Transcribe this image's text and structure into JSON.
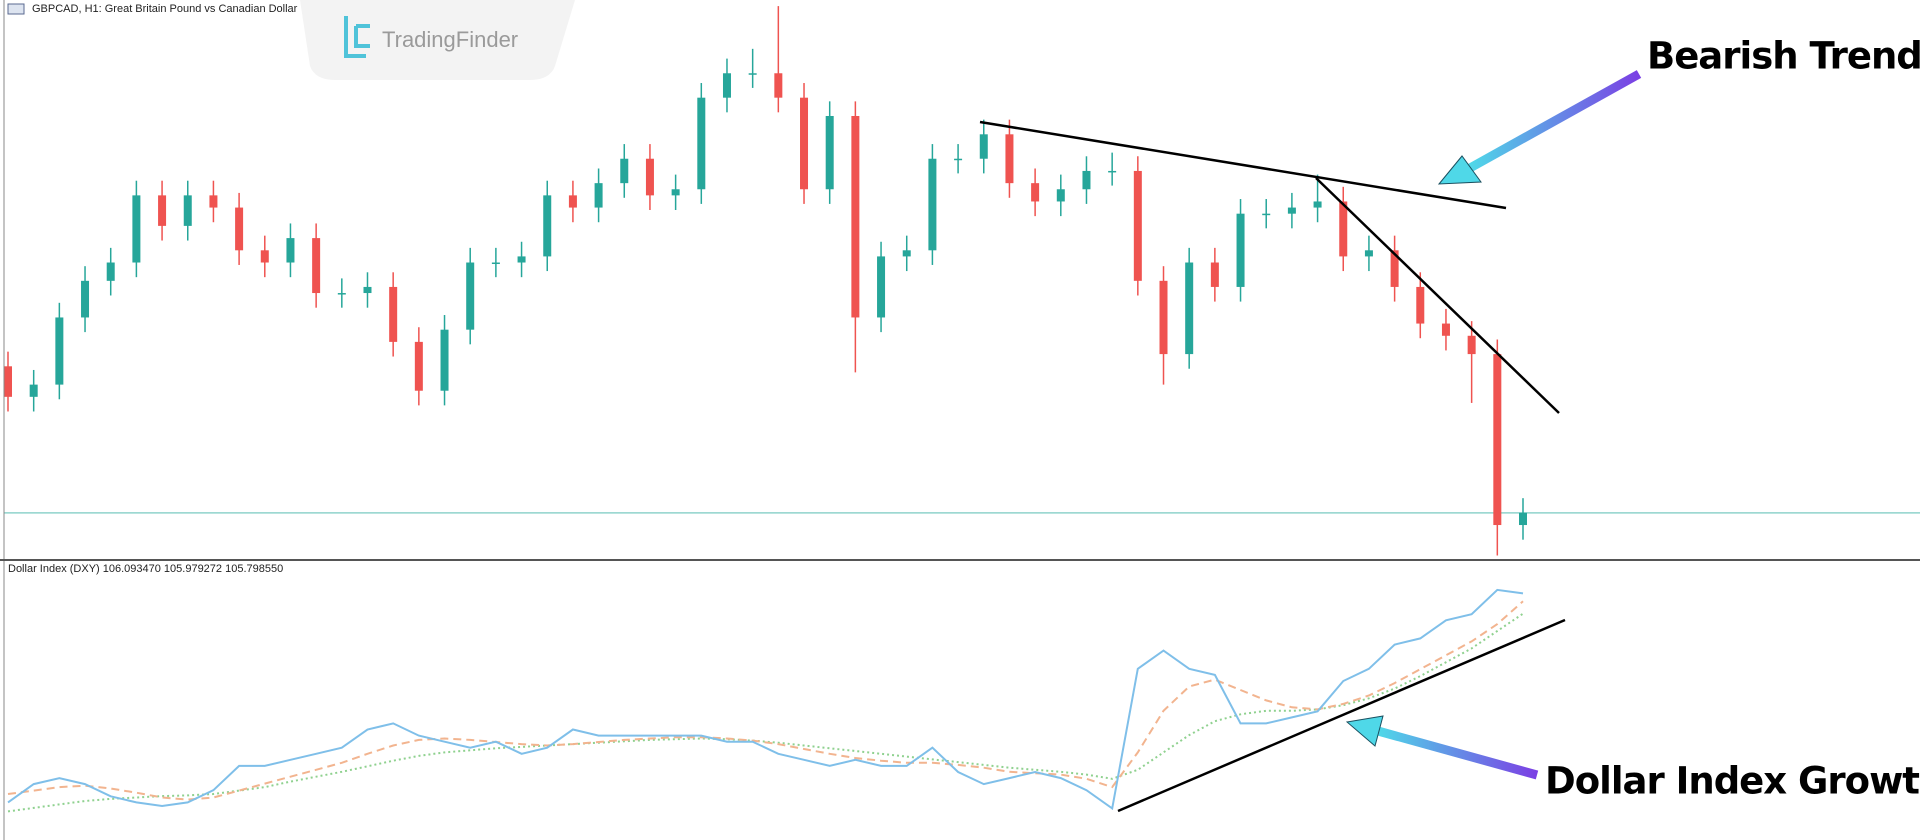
{
  "chart_data": [
    {
      "type": "candlestick",
      "title": "GBPCAD, H1:  Great Britain Pound vs Canadian Dollar",
      "watermark": "TradingFinder",
      "annotation": "Bearish Trend",
      "up_color": "#26a69a",
      "down_color": "#ef5350",
      "hline": 1.783,
      "hline_color": "#8fd3cc",
      "ylim": [
        1.7793,
        1.825
      ],
      "candles": [
        [
          1.795,
          1.7962,
          1.7913,
          1.7925
        ],
        [
          1.7925,
          1.7947,
          1.7913,
          1.7935
        ],
        [
          1.7935,
          1.8002,
          1.7923,
          1.799
        ],
        [
          1.799,
          1.8032,
          1.7978,
          1.802
        ],
        [
          1.802,
          1.8047,
          1.8008,
          1.8035
        ],
        [
          1.8035,
          1.8102,
          1.8023,
          1.809
        ],
        [
          1.809,
          1.8102,
          1.8053,
          1.8065
        ],
        [
          1.8065,
          1.8102,
          1.8053,
          1.809
        ],
        [
          1.809,
          1.8102,
          1.8068,
          1.808
        ],
        [
          1.808,
          1.8092,
          1.8033,
          1.8045
        ],
        [
          1.8045,
          1.8057,
          1.8023,
          1.8035
        ],
        [
          1.8035,
          1.8067,
          1.8023,
          1.8055
        ],
        [
          1.8055,
          1.8067,
          1.7998,
          1.801
        ],
        [
          1.801,
          1.8022,
          1.7998,
          1.801
        ],
        [
          1.801,
          1.8027,
          1.7998,
          1.8015
        ],
        [
          1.8015,
          1.8027,
          1.7958,
          1.797
        ],
        [
          1.797,
          1.7982,
          1.7918,
          1.793
        ],
        [
          1.793,
          1.7992,
          1.7918,
          1.798
        ],
        [
          1.798,
          1.8047,
          1.7968,
          1.8035
        ],
        [
          1.8035,
          1.8047,
          1.8023,
          1.8035
        ],
        [
          1.8035,
          1.8052,
          1.8023,
          1.804
        ],
        [
          1.804,
          1.8102,
          1.8028,
          1.809
        ],
        [
          1.809,
          1.8102,
          1.8068,
          1.808
        ],
        [
          1.808,
          1.8112,
          1.8068,
          1.81
        ],
        [
          1.81,
          1.8132,
          1.8088,
          1.812
        ],
        [
          1.812,
          1.8132,
          1.8078,
          1.809
        ],
        [
          1.809,
          1.8107,
          1.8078,
          1.8095
        ],
        [
          1.8095,
          1.8182,
          1.8083,
          1.817
        ],
        [
          1.817,
          1.8202,
          1.8158,
          1.819
        ],
        [
          1.819,
          1.821,
          1.8178,
          1.819
        ],
        [
          1.819,
          1.8245,
          1.8158,
          1.817
        ],
        [
          1.817,
          1.8182,
          1.8083,
          1.8095
        ],
        [
          1.8095,
          1.8167,
          1.8083,
          1.8155
        ],
        [
          1.8155,
          1.8167,
          1.7945,
          1.799
        ],
        [
          1.799,
          1.8052,
          1.7978,
          1.804
        ],
        [
          1.804,
          1.8057,
          1.8028,
          1.8045
        ],
        [
          1.8045,
          1.8132,
          1.8033,
          1.812
        ],
        [
          1.812,
          1.8132,
          1.8108,
          1.812
        ],
        [
          1.812,
          1.8152,
          1.8108,
          1.814
        ],
        [
          1.814,
          1.8152,
          1.8088,
          1.81
        ],
        [
          1.81,
          1.8112,
          1.8073,
          1.8085
        ],
        [
          1.8085,
          1.8107,
          1.8073,
          1.8095
        ],
        [
          1.8095,
          1.8122,
          1.8083,
          1.811
        ],
        [
          1.811,
          1.8125,
          1.8098,
          1.811
        ],
        [
          1.811,
          1.8122,
          1.8008,
          1.802
        ],
        [
          1.802,
          1.8032,
          1.7935,
          1.796
        ],
        [
          1.796,
          1.8047,
          1.7948,
          1.8035
        ],
        [
          1.8035,
          1.8047,
          1.8003,
          1.8015
        ],
        [
          1.8015,
          1.8087,
          1.8003,
          1.8075
        ],
        [
          1.8075,
          1.8087,
          1.8063,
          1.8075
        ],
        [
          1.8075,
          1.8092,
          1.8063,
          1.808
        ],
        [
          1.808,
          1.8107,
          1.8068,
          1.8085
        ],
        [
          1.8085,
          1.8097,
          1.8028,
          1.804
        ],
        [
          1.804,
          1.8057,
          1.8028,
          1.8045
        ],
        [
          1.8045,
          1.8057,
          1.8003,
          1.8015
        ],
        [
          1.8015,
          1.8027,
          1.7973,
          1.7985
        ],
        [
          1.7985,
          1.7997,
          1.7963,
          1.7975
        ],
        [
          1.7975,
          1.7987,
          1.792,
          1.796
        ],
        [
          1.796,
          1.7972,
          1.7795,
          1.782
        ],
        [
          1.782,
          1.7842,
          1.7808,
          1.783
        ]
      ]
    },
    {
      "type": "line",
      "title": "Dollar Index (DXY) 106.093470 105.979272 105.798550",
      "annotation": "Dollar Index Growth",
      "ylim": [
        102.5375,
        106.545
      ],
      "series": [
        {
          "color": "#7fbfe9",
          "style": "solid",
          "values": [
            103.08,
            103.343,
            103.43,
            103.343,
            103.168,
            103.08,
            103.028,
            103.08,
            103.255,
            103.605,
            103.605,
            103.693,
            103.78,
            103.868,
            104.13,
            104.218,
            104.043,
            103.955,
            103.868,
            103.955,
            103.78,
            103.868,
            104.13,
            104.043,
            104.043,
            104.043,
            104.043,
            104.043,
            103.955,
            103.955,
            103.78,
            103.693,
            103.605,
            103.693,
            103.605,
            103.605,
            103.868,
            103.518,
            103.343,
            103.43,
            103.518,
            103.43,
            103.255,
            102.993,
            105.005,
            105.268,
            105.005,
            104.918,
            104.218,
            104.218,
            104.305,
            104.393,
            104.83,
            105.005,
            105.355,
            105.443,
            105.705,
            105.793,
            106.143,
            106.093
          ]
        },
        {
          "color": "#f2b48f",
          "style": "dashed",
          "values": [
            103.2,
            103.25,
            103.3,
            103.32,
            103.28,
            103.22,
            103.15,
            103.12,
            103.15,
            103.25,
            103.35,
            103.45,
            103.55,
            103.65,
            103.78,
            103.9,
            103.98,
            104.0,
            103.98,
            103.95,
            103.92,
            103.9,
            103.92,
            103.95,
            103.98,
            104.0,
            104.02,
            104.02,
            104.0,
            103.97,
            103.92,
            103.85,
            103.78,
            103.72,
            103.68,
            103.65,
            103.65,
            103.62,
            103.58,
            103.52,
            103.5,
            103.48,
            103.42,
            103.3,
            103.8,
            104.4,
            104.75,
            104.85,
            104.7,
            104.55,
            104.45,
            104.42,
            104.5,
            104.62,
            104.8,
            105.0,
            105.2,
            105.4,
            105.65,
            105.979
          ]
        },
        {
          "color": "#8fd18f",
          "style": "dotted",
          "values": [
            102.95,
            103.0,
            103.05,
            103.1,
            103.13,
            103.15,
            103.17,
            103.18,
            103.2,
            103.25,
            103.3,
            103.38,
            103.45,
            103.52,
            103.6,
            103.68,
            103.75,
            103.8,
            103.83,
            103.86,
            103.88,
            103.9,
            103.92,
            103.94,
            103.96,
            103.98,
            103.99,
            104.0,
            103.99,
            103.97,
            103.94,
            103.9,
            103.86,
            103.82,
            103.78,
            103.74,
            103.7,
            103.66,
            103.62,
            103.58,
            103.55,
            103.52,
            103.48,
            103.42,
            103.55,
            103.8,
            104.05,
            104.25,
            104.35,
            104.4,
            104.4,
            104.42,
            104.48,
            104.58,
            104.72,
            104.9,
            105.1,
            105.3,
            105.55,
            105.799
          ]
        }
      ]
    }
  ]
}
